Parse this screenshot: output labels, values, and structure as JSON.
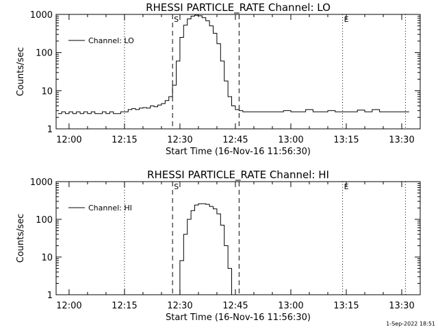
{
  "background": "#ffffff",
  "foreground": "#000000",
  "timestamp": "1-Sep-2022 18:51",
  "chart_data": [
    {
      "type": "line",
      "title": "RHESSI PARTICLE_RATE Channel: LO",
      "xlabel": "Start Time (16-Nov-16 11:56:30)",
      "ylabel": "Counts/sec",
      "yscale": "log",
      "xlim": [
        "11:56:30",
        "13:35:00"
      ],
      "ylim": [
        1,
        1000
      ],
      "xticks": [
        "12:00",
        "12:15",
        "12:30",
        "12:45",
        "13:00",
        "13:15",
        "13:30"
      ],
      "yticks": [
        "1",
        "10",
        "100",
        "1000"
      ],
      "legend": "top-left",
      "markers": [
        {
          "time": "12:15:00",
          "style": "dotted",
          "label": ""
        },
        {
          "time": "12:28:00",
          "style": "dashed",
          "label": "S"
        },
        {
          "time": "12:46:00",
          "style": "dashed",
          "label": ""
        },
        {
          "time": "13:14:00",
          "style": "dotted",
          "label": "E"
        },
        {
          "time": "13:31:00",
          "style": "dotted",
          "label": ""
        }
      ],
      "series": [
        {
          "name": "Channel: LO",
          "x": [
            "11:57:00",
            "11:58:00",
            "11:59:00",
            "12:00:00",
            "12:01:00",
            "12:02:00",
            "12:03:00",
            "12:04:00",
            "12:05:00",
            "12:06:00",
            "12:07:00",
            "12:08:00",
            "12:09:00",
            "12:10:00",
            "12:11:00",
            "12:12:00",
            "12:13:00",
            "12:14:00",
            "12:15:00",
            "12:16:00",
            "12:17:00",
            "12:18:00",
            "12:19:00",
            "12:20:00",
            "12:21:00",
            "12:22:00",
            "12:23:00",
            "12:24:00",
            "12:25:00",
            "12:26:00",
            "12:27:00",
            "12:28:00",
            "12:29:00",
            "12:30:00",
            "12:31:00",
            "12:32:00",
            "12:33:00",
            "12:34:00",
            "12:35:00",
            "12:36:00",
            "12:37:00",
            "12:38:00",
            "12:39:00",
            "12:40:00",
            "12:41:00",
            "12:42:00",
            "12:43:00",
            "12:44:00",
            "12:45:00",
            "12:46:00",
            "12:47:00",
            "12:48:00",
            "12:50:00",
            "12:52:00",
            "12:54:00",
            "12:56:00",
            "12:58:00",
            "13:00:00",
            "13:02:00",
            "13:04:00",
            "13:06:00",
            "13:08:00",
            "13:10:00",
            "13:12:00",
            "13:14:00",
            "13:16:00",
            "13:18:00",
            "13:20:00",
            "13:22:00",
            "13:24:00",
            "13:26:00",
            "13:28:00",
            "13:30:00",
            "13:32:00"
          ],
          "values": [
            2.5,
            2.8,
            2.5,
            2.8,
            2.5,
            2.8,
            2.5,
            2.8,
            2.5,
            2.8,
            2.5,
            2.5,
            2.8,
            2.5,
            2.8,
            2.5,
            2.5,
            2.8,
            2.8,
            3.2,
            3.4,
            3.2,
            3.5,
            3.6,
            3.5,
            4.0,
            3.8,
            4.2,
            4.6,
            5.5,
            7.0,
            14,
            60,
            250,
            520,
            760,
            900,
            950,
            920,
            820,
            680,
            500,
            320,
            170,
            60,
            18,
            7,
            4,
            3.2,
            3.0,
            2.8,
            2.8,
            2.8,
            2.8,
            2.8,
            2.8,
            3.0,
            2.8,
            2.8,
            3.2,
            2.8,
            2.8,
            3.0,
            2.8,
            2.8,
            2.8,
            3.1,
            2.8,
            3.2,
            2.8,
            2.8,
            2.8,
            2.8,
            2.8
          ]
        }
      ]
    },
    {
      "type": "line",
      "title": "RHESSI PARTICLE_RATE Channel: HI",
      "xlabel": "Start Time (16-Nov-16 11:56:30)",
      "ylabel": "Counts/sec",
      "yscale": "log",
      "xlim": [
        "11:56:30",
        "13:35:00"
      ],
      "ylim": [
        1,
        1000
      ],
      "xticks": [
        "12:00",
        "12:15",
        "12:30",
        "12:45",
        "13:00",
        "13:15",
        "13:30"
      ],
      "yticks": [
        "1",
        "10",
        "100",
        "1000"
      ],
      "legend": "top-left",
      "markers": [
        {
          "time": "12:15:00",
          "style": "dotted",
          "label": ""
        },
        {
          "time": "12:28:00",
          "style": "dashed",
          "label": "S"
        },
        {
          "time": "12:46:00",
          "style": "dashed",
          "label": ""
        },
        {
          "time": "13:14:00",
          "style": "dotted",
          "label": "E"
        },
        {
          "time": "13:31:00",
          "style": "dotted",
          "label": ""
        }
      ],
      "series": [
        {
          "name": "Channel: HI",
          "x": [
            "12:29:00",
            "12:30:00",
            "12:31:00",
            "12:32:00",
            "12:33:00",
            "12:34:00",
            "12:35:00",
            "12:36:00",
            "12:37:00",
            "12:38:00",
            "12:39:00",
            "12:40:00",
            "12:41:00",
            "12:42:00",
            "12:43:00",
            "12:44:00"
          ],
          "values": [
            1,
            8,
            40,
            100,
            170,
            240,
            260,
            260,
            250,
            220,
            190,
            140,
            70,
            20,
            5,
            1
          ]
        }
      ]
    }
  ]
}
